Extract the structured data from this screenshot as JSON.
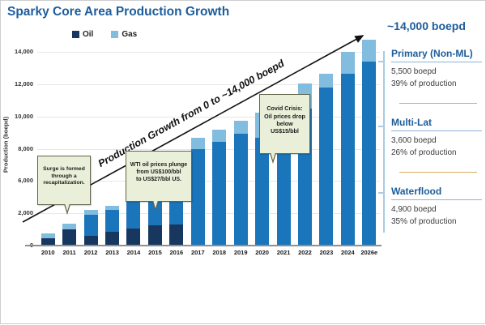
{
  "title": {
    "text": "Sparky Core Area Production Growth"
  },
  "legend": {
    "items": [
      {
        "label": "Oil",
        "color": "#17375e"
      },
      {
        "label": "Gas",
        "color": "#82bcdf"
      }
    ]
  },
  "y_axis": {
    "title": "Production (boepd)",
    "ticks": [
      "14,000",
      "12,000",
      "10,000",
      "8,000",
      "6,000",
      "2,000",
      "0"
    ]
  },
  "growth_arrow": {
    "label": "Production Growth from 0 to ~14,000 boepd",
    "end_label": "~14,000 boepd"
  },
  "callouts": [
    {
      "id": "surge",
      "text": "Surge is formed\nthrough a\nrecapitalization."
    },
    {
      "id": "wti",
      "text": "WTI oil prices plunge\nfrom US$100/bbl\nto US$27/bbl US."
    },
    {
      "id": "covid",
      "text": "Covid Crisis:\nOil prices drop\nbelow\nUS$15/bbl"
    }
  ],
  "sidebar": {
    "sections": [
      {
        "title": "Primary (Non-ML)",
        "boepd": "5,500 boepd",
        "share": "39% of production"
      },
      {
        "title": "Multi-Lat",
        "boepd": "3,600 boepd",
        "share": "26% of production"
      },
      {
        "title": "Waterflood",
        "boepd": "4,900 boepd",
        "share": "35% of production"
      }
    ]
  },
  "colors": {
    "accent_blue": "#1d5c9c",
    "oil_navy": "#17375e",
    "oil_blue": "#1b75bb",
    "gas_light": "#82bcdf",
    "callout_bg": "#eaefd9",
    "callout_border": "#62624a",
    "separator_tan": "#d7ae62",
    "gridline": "#e7e7e7",
    "axis": "#8f8f8f",
    "bracket_blue": "#a9cbe5"
  },
  "chart_data": {
    "type": "bar",
    "stacked": true,
    "title": "Sparky Core Area Production Growth",
    "ylabel": "Production (boepd)",
    "ylim": [
      0,
      15000
    ],
    "yticks_shown": [
      "0",
      "2,000",
      "6,000",
      "8,000",
      "10,000",
      "12,000",
      "14,000"
    ],
    "grid": true,
    "legend_position": "top",
    "categories": [
      "2010",
      "2011",
      "2012",
      "2013",
      "2014",
      "2015",
      "2016",
      "2017",
      "2018",
      "2019",
      "2020",
      "2021",
      "2022",
      "2023",
      "2024",
      "2026e"
    ],
    "series": [
      {
        "name": "Oil",
        "color": "#1b75bb",
        "values": [
          500,
          1150,
          2200,
          2550,
          3200,
          3800,
          4200,
          7000,
          7500,
          8100,
          7800,
          9400,
          9900,
          11400,
          12400,
          13300
        ]
      },
      {
        "name": "Gas",
        "color": "#82bcdf",
        "values": [
          400,
          450,
          400,
          350,
          400,
          500,
          600,
          800,
          900,
          900,
          1800,
          1300,
          1800,
          1000,
          1600,
          1600
        ]
      }
    ],
    "oil_dark_base_values": [
      500,
      1150,
      700,
      1000,
      1250,
      1450,
      1500,
      0,
      0,
      0,
      0,
      0,
      0,
      0,
      0,
      0
    ],
    "oil_dark_base_note": "Lower portion of Oil bars 2010-2016 drawn in darker navy shade",
    "totals": [
      900,
      1600,
      2600,
      2900,
      3600,
      4300,
      4800,
      7800,
      8400,
      9000,
      9600,
      10700,
      11700,
      12400,
      14000,
      14900
    ],
    "annotations": [
      "Surge is formed through a recapitalization.",
      "WTI oil prices plunge from US$100/bbl to US$27/bbl US.",
      "Covid Crisis: Oil prices drop below US$15/bbl",
      "Production Growth from 0 to ~14,000 boepd",
      "~14,000 boepd"
    ]
  }
}
